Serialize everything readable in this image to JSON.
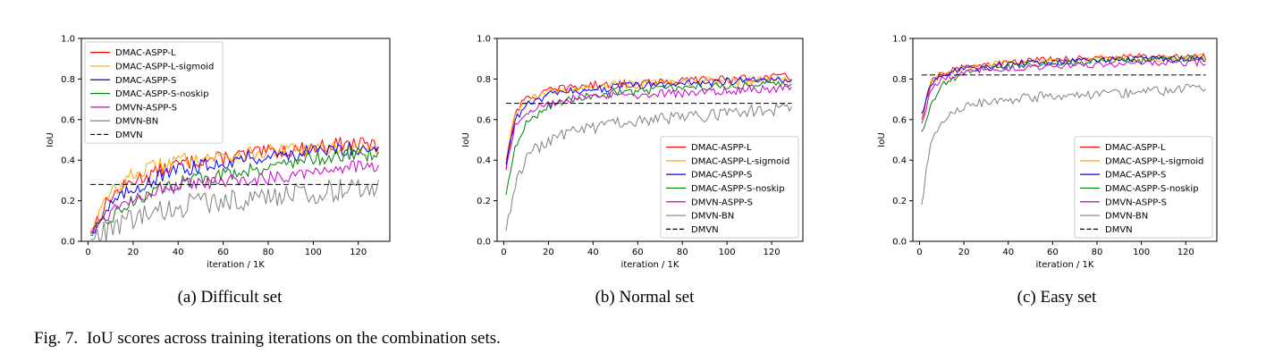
{
  "figure_caption": {
    "label": "Fig. 7.",
    "text": "IoU scores across training iterations on the combination sets."
  },
  "chart_data": [
    {
      "type": "line",
      "caption": "(a) Difficult set",
      "xlabel": "iteration / 1K",
      "ylabel": "IoU",
      "xlim": [
        -3,
        134
      ],
      "ylim": [
        0,
        1.0
      ],
      "xticks": [
        0,
        20,
        40,
        60,
        80,
        100,
        120
      ],
      "yticks": [
        0.0,
        0.2,
        0.4,
        0.6,
        0.8,
        1.0
      ],
      "legend_position": "upper-left",
      "series": [
        {
          "name": "DMAC-ASPP-L",
          "color": "#ff0000",
          "x": [
            1,
            10,
            20,
            30,
            40,
            50,
            60,
            70,
            80,
            90,
            100,
            110,
            120,
            129
          ],
          "y": [
            0.05,
            0.22,
            0.3,
            0.34,
            0.38,
            0.4,
            0.41,
            0.43,
            0.44,
            0.45,
            0.46,
            0.48,
            0.48,
            0.47
          ]
        },
        {
          "name": "DMAC-ASPP-L-sigmoid",
          "color": "#ffa500",
          "x": [
            1,
            10,
            20,
            30,
            40,
            50,
            60,
            70,
            80,
            90,
            100,
            110,
            120,
            129
          ],
          "y": [
            0.06,
            0.24,
            0.33,
            0.37,
            0.4,
            0.41,
            0.42,
            0.43,
            0.44,
            0.45,
            0.45,
            0.46,
            0.46,
            0.45
          ]
        },
        {
          "name": "DMAC-ASPP-S",
          "color": "#0000ff",
          "x": [
            1,
            10,
            20,
            30,
            40,
            50,
            60,
            70,
            80,
            90,
            100,
            110,
            120,
            129
          ],
          "y": [
            0.04,
            0.18,
            0.26,
            0.31,
            0.35,
            0.37,
            0.39,
            0.41,
            0.42,
            0.43,
            0.44,
            0.45,
            0.46,
            0.46
          ]
        },
        {
          "name": "DMAC-ASPP-S-noskip",
          "color": "#008000",
          "x": [
            1,
            10,
            20,
            30,
            40,
            50,
            60,
            70,
            80,
            90,
            100,
            110,
            120,
            129
          ],
          "y": [
            0.03,
            0.12,
            0.2,
            0.25,
            0.29,
            0.31,
            0.33,
            0.35,
            0.37,
            0.39,
            0.41,
            0.42,
            0.43,
            0.43
          ]
        },
        {
          "name": "DMVN-ASPP-S",
          "color": "#cc00cc",
          "x": [
            1,
            10,
            20,
            30,
            40,
            50,
            60,
            70,
            80,
            90,
            100,
            110,
            120,
            129
          ],
          "y": [
            0.04,
            0.15,
            0.22,
            0.25,
            0.27,
            0.28,
            0.29,
            0.3,
            0.31,
            0.33,
            0.35,
            0.36,
            0.37,
            0.36
          ]
        },
        {
          "name": "DMVN-BN",
          "color": "#808080",
          "x": [
            1,
            10,
            20,
            30,
            40,
            50,
            60,
            70,
            80,
            90,
            100,
            110,
            120,
            129
          ],
          "y": [
            0.01,
            0.06,
            0.11,
            0.14,
            0.17,
            0.19,
            0.2,
            0.21,
            0.22,
            0.23,
            0.24,
            0.25,
            0.27,
            0.27
          ]
        },
        {
          "name": "DMVN",
          "color": "#000000",
          "dashed": true,
          "x": [
            1,
            129
          ],
          "y": [
            0.28,
            0.28
          ]
        }
      ]
    },
    {
      "type": "line",
      "caption": "(b) Normal set",
      "xlabel": "iteration / 1K",
      "ylabel": "IoU",
      "xlim": [
        -3,
        134
      ],
      "ylim": [
        0,
        1.0
      ],
      "xticks": [
        0,
        20,
        40,
        60,
        80,
        100,
        120
      ],
      "yticks": [
        0.0,
        0.2,
        0.4,
        0.6,
        0.8,
        1.0
      ],
      "legend_position": "lower-right",
      "series": [
        {
          "name": "DMAC-ASPP-L",
          "color": "#ff0000",
          "x": [
            1,
            5,
            10,
            20,
            30,
            40,
            50,
            60,
            70,
            80,
            90,
            100,
            110,
            120,
            129
          ],
          "y": [
            0.36,
            0.64,
            0.7,
            0.74,
            0.76,
            0.77,
            0.77,
            0.78,
            0.79,
            0.79,
            0.8,
            0.8,
            0.8,
            0.81,
            0.81
          ]
        },
        {
          "name": "DMAC-ASPP-L-sigmoid",
          "color": "#ffa500",
          "x": [
            1,
            5,
            10,
            20,
            30,
            40,
            50,
            60,
            70,
            80,
            90,
            100,
            110,
            120,
            129
          ],
          "y": [
            0.4,
            0.62,
            0.69,
            0.73,
            0.75,
            0.76,
            0.77,
            0.77,
            0.78,
            0.78,
            0.79,
            0.79,
            0.79,
            0.8,
            0.8
          ]
        },
        {
          "name": "DMAC-ASPP-S",
          "color": "#0000ff",
          "x": [
            1,
            5,
            10,
            20,
            30,
            40,
            50,
            60,
            70,
            80,
            90,
            100,
            110,
            120,
            129
          ],
          "y": [
            0.38,
            0.6,
            0.67,
            0.72,
            0.74,
            0.75,
            0.76,
            0.77,
            0.77,
            0.78,
            0.78,
            0.79,
            0.79,
            0.8,
            0.8
          ]
        },
        {
          "name": "DMAC-ASPP-S-noskip",
          "color": "#008000",
          "x": [
            1,
            5,
            10,
            20,
            30,
            40,
            50,
            60,
            70,
            80,
            90,
            100,
            110,
            120,
            129
          ],
          "y": [
            0.23,
            0.45,
            0.58,
            0.67,
            0.7,
            0.72,
            0.73,
            0.74,
            0.75,
            0.76,
            0.76,
            0.77,
            0.77,
            0.78,
            0.78
          ]
        },
        {
          "name": "DMVN-ASPP-S",
          "color": "#cc00cc",
          "x": [
            1,
            5,
            10,
            20,
            30,
            40,
            50,
            60,
            70,
            80,
            90,
            100,
            110,
            120,
            129
          ],
          "y": [
            0.35,
            0.58,
            0.64,
            0.68,
            0.7,
            0.71,
            0.72,
            0.72,
            0.73,
            0.73,
            0.74,
            0.74,
            0.75,
            0.75,
            0.76
          ]
        },
        {
          "name": "DMVN-BN",
          "color": "#808080",
          "x": [
            1,
            5,
            10,
            20,
            30,
            40,
            50,
            60,
            70,
            80,
            90,
            100,
            110,
            120,
            129
          ],
          "y": [
            0.05,
            0.28,
            0.42,
            0.5,
            0.54,
            0.56,
            0.58,
            0.59,
            0.6,
            0.61,
            0.62,
            0.63,
            0.64,
            0.65,
            0.66
          ]
        },
        {
          "name": "DMVN",
          "color": "#000000",
          "dashed": true,
          "x": [
            1,
            129
          ],
          "y": [
            0.68,
            0.68
          ]
        }
      ]
    },
    {
      "type": "line",
      "caption": "(c) Easy set",
      "xlabel": "iteration / 1K",
      "ylabel": "IoU",
      "xlim": [
        -3,
        134
      ],
      "ylim": [
        0,
        1.0
      ],
      "xticks": [
        0,
        20,
        40,
        60,
        80,
        100,
        120
      ],
      "yticks": [
        0.0,
        0.2,
        0.4,
        0.6,
        0.8,
        1.0
      ],
      "legend_position": "lower-right",
      "series": [
        {
          "name": "DMAC-ASPP-L",
          "color": "#ff0000",
          "x": [
            1,
            5,
            10,
            20,
            30,
            40,
            50,
            60,
            70,
            80,
            90,
            100,
            110,
            120,
            129
          ],
          "y": [
            0.6,
            0.78,
            0.83,
            0.86,
            0.87,
            0.88,
            0.89,
            0.9,
            0.9,
            0.9,
            0.91,
            0.91,
            0.91,
            0.91,
            0.91
          ]
        },
        {
          "name": "DMAC-ASPP-L-sigmoid",
          "color": "#ffa500",
          "x": [
            1,
            5,
            10,
            20,
            30,
            40,
            50,
            60,
            70,
            80,
            90,
            100,
            110,
            120,
            129
          ],
          "y": [
            0.62,
            0.78,
            0.82,
            0.85,
            0.87,
            0.88,
            0.88,
            0.89,
            0.89,
            0.9,
            0.9,
            0.9,
            0.9,
            0.91,
            0.91
          ]
        },
        {
          "name": "DMAC-ASPP-S",
          "color": "#0000ff",
          "x": [
            1,
            5,
            10,
            20,
            30,
            40,
            50,
            60,
            70,
            80,
            90,
            100,
            110,
            120,
            129
          ],
          "y": [
            0.63,
            0.77,
            0.82,
            0.85,
            0.86,
            0.87,
            0.88,
            0.88,
            0.89,
            0.89,
            0.9,
            0.9,
            0.9,
            0.9,
            0.9
          ]
        },
        {
          "name": "DMAC-ASPP-S-noskip",
          "color": "#008000",
          "x": [
            1,
            5,
            10,
            20,
            30,
            40,
            50,
            60,
            70,
            80,
            90,
            100,
            110,
            120,
            129
          ],
          "y": [
            0.54,
            0.66,
            0.77,
            0.83,
            0.85,
            0.86,
            0.87,
            0.88,
            0.88,
            0.89,
            0.89,
            0.89,
            0.9,
            0.9,
            0.9
          ]
        },
        {
          "name": "DMVN-ASPP-S",
          "color": "#cc00cc",
          "x": [
            1,
            5,
            10,
            20,
            30,
            40,
            50,
            60,
            70,
            80,
            90,
            100,
            110,
            120,
            129
          ],
          "y": [
            0.58,
            0.74,
            0.8,
            0.83,
            0.85,
            0.85,
            0.86,
            0.86,
            0.87,
            0.87,
            0.87,
            0.88,
            0.88,
            0.88,
            0.88
          ]
        },
        {
          "name": "DMVN-BN",
          "color": "#808080",
          "x": [
            1,
            5,
            10,
            20,
            30,
            40,
            50,
            60,
            70,
            80,
            90,
            100,
            110,
            120,
            129
          ],
          "y": [
            0.18,
            0.5,
            0.6,
            0.66,
            0.69,
            0.7,
            0.71,
            0.72,
            0.72,
            0.73,
            0.73,
            0.74,
            0.74,
            0.75,
            0.76
          ]
        },
        {
          "name": "DMVN",
          "color": "#000000",
          "dashed": true,
          "x": [
            1,
            129
          ],
          "y": [
            0.82,
            0.82
          ]
        }
      ]
    }
  ]
}
